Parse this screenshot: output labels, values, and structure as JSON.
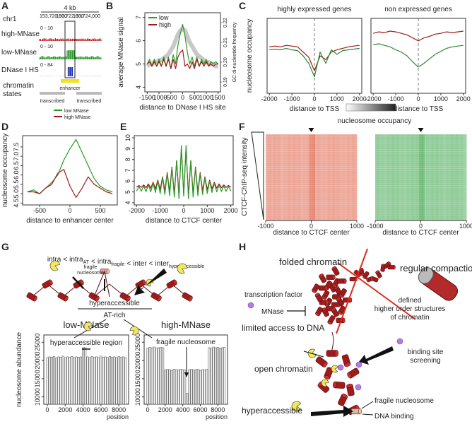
{
  "panel_labels": [
    "A",
    "B",
    "C",
    "D",
    "E",
    "F",
    "G",
    "H"
  ],
  "panel_a": {
    "chromosome": "chr1",
    "scale": "4 kb",
    "coordinates": [
      "153,720,000",
      "153,722,000",
      "153,724,000"
    ],
    "tracks": [
      {
        "name": "high-MNase",
        "range": "0 - 10",
        "color": "#cc2222"
      },
      {
        "name": "low-MNase",
        "range": "0 - 10",
        "color": "#2a9a2a"
      },
      {
        "name": "DNase I HS",
        "range": "0 - 84",
        "color": "#1a2ab0"
      }
    ],
    "states_label": [
      "chromatin",
      "states"
    ],
    "enhancer": "enhancer",
    "transcribed": [
      "transcribed",
      "transcribed"
    ]
  },
  "chart_data": [
    {
      "type": "line",
      "xlabel": "distance to DNase I HS site",
      "ylabel": "average MNase signal",
      "y2label": "GC di-nucleotide frequency",
      "legend": "topleft",
      "x": [
        -1500,
        -1400,
        -1300,
        -1200,
        -1100,
        -1000,
        -900,
        -800,
        -700,
        -600,
        -500,
        -400,
        -300,
        -200,
        -100,
        0,
        100,
        200,
        300,
        400,
        500,
        600,
        700,
        800,
        900,
        1000,
        1100,
        1200,
        1300,
        1400,
        1500
      ],
      "xlim": [
        -1600,
        1600
      ],
      "xticks": [
        -1500,
        -1000,
        -500,
        0,
        500,
        1000,
        1500
      ],
      "ylim": [
        3.8,
        7.2
      ],
      "yticks": [
        4,
        5,
        6,
        7
      ],
      "y2lim": [
        0.185,
        0.225
      ],
      "y2ticks": [
        0.19,
        {
          "value": 0.2,
          "label": "0.20"
        },
        0.21,
        0.22
      ],
      "series": [
        {
          "color": "#b0b0b0",
          "axis": "y2",
          "values": [
            0.198,
            0.199,
            0.199,
            0.2,
            0.2,
            0.201,
            0.201,
            0.202,
            0.203,
            0.204,
            0.206,
            0.208,
            0.211,
            0.214,
            0.216,
            0.217,
            0.216,
            0.213,
            0.21,
            0.208,
            0.206,
            0.204,
            0.203,
            0.202,
            0.201,
            0.2,
            0.2,
            0.199,
            0.199,
            0.198,
            0.198
          ]
        },
        {
          "name": "low",
          "color": "#2a9a2a",
          "values": [
            5.0,
            5.2,
            4.9,
            5.2,
            4.9,
            5.2,
            4.9,
            5.3,
            4.9,
            5.3,
            4.8,
            5.4,
            5.0,
            5.8,
            6.3,
            6.7,
            6.2,
            5.5,
            5.0,
            5.3,
            4.9,
            5.3,
            4.9,
            5.2,
            5.0,
            5.2,
            4.9,
            5.1,
            5.0,
            5.1,
            5.0
          ]
        },
        {
          "name": "high",
          "color": "#a01818",
          "values": [
            5.0,
            5.1,
            4.9,
            5.1,
            4.9,
            5.1,
            4.9,
            5.2,
            4.9,
            5.2,
            4.8,
            5.2,
            4.8,
            5.3,
            5.5,
            5.6,
            4.9,
            5.0,
            4.8,
            5.1,
            4.8,
            5.2,
            4.9,
            5.1,
            4.9,
            5.1,
            4.9,
            5.0,
            4.9,
            5.0,
            5.0
          ]
        }
      ]
    },
    {
      "type": "line",
      "title": "highly expressed genes",
      "xlabel": "distance to TSS",
      "ylabel": "nucleosome occupancy",
      "x": [
        -2000,
        -1750,
        -1500,
        -1250,
        -1000,
        -750,
        -500,
        -250,
        0,
        250,
        500,
        750,
        1000,
        1250,
        1500,
        1750,
        2000
      ],
      "xlim": [
        -2100,
        2100
      ],
      "xticks": [
        -2000,
        -1000,
        0,
        1000,
        2000
      ],
      "ylim": [
        0,
        1
      ],
      "series": [
        {
          "color": "#a01818",
          "values": [
            0.62,
            0.63,
            0.62,
            0.64,
            0.63,
            0.62,
            0.55,
            0.48,
            0.3,
            0.5,
            0.45,
            0.55,
            0.58,
            0.6,
            0.62,
            0.63,
            0.64
          ]
        },
        {
          "color": "#2a8a3a",
          "values": [
            0.58,
            0.59,
            0.58,
            0.6,
            0.58,
            0.57,
            0.5,
            0.4,
            0.22,
            0.55,
            0.4,
            0.58,
            0.52,
            0.57,
            0.58,
            0.59,
            0.6
          ]
        }
      ]
    },
    {
      "type": "line",
      "title": "non expressed genes",
      "xlabel": "distance to TSS",
      "x": [
        -2000,
        -1750,
        -1500,
        -1250,
        -1000,
        -750,
        -500,
        -250,
        0,
        250,
        500,
        750,
        1000,
        1250,
        1500,
        1750,
        2000
      ],
      "xlim": [
        -2100,
        2100
      ],
      "xticks": [
        -2000,
        -1000,
        0,
        1000,
        2000
      ],
      "ylim": [
        0,
        1
      ],
      "series": [
        {
          "color": "#a01818",
          "values": [
            0.8,
            0.82,
            0.81,
            0.83,
            0.82,
            0.8,
            0.78,
            0.74,
            0.7,
            0.74,
            0.76,
            0.79,
            0.8,
            0.82,
            0.81,
            0.82,
            0.83
          ]
        },
        {
          "color": "#2a8a3a",
          "values": [
            0.65,
            0.66,
            0.64,
            0.62,
            0.58,
            0.55,
            0.5,
            0.42,
            0.35,
            0.4,
            0.46,
            0.52,
            0.56,
            0.6,
            0.62,
            0.63,
            0.64
          ]
        }
      ]
    },
    {
      "type": "line",
      "xlabel": "distance to enhancer center",
      "ylabel": "nucleosome occupancy",
      "legend": "top-outside",
      "x": [
        -700,
        -600,
        -500,
        -400,
        -300,
        -200,
        -100,
        0,
        100,
        200,
        300,
        400,
        500,
        600,
        700
      ],
      "xlim": [
        -780,
        780
      ],
      "xticks": [
        -500,
        0,
        500
      ],
      "ylim": [
        4.4,
        8.1
      ],
      "yticks": [
        4.5,
        {
          "value": 5,
          "label": "5.0"
        },
        5.5,
        {
          "value": 6,
          "label": "6.0"
        },
        6.5,
        {
          "value": 7,
          "label": "7.0"
        },
        7.5
      ],
      "series": [
        {
          "name": "low MNase",
          "color": "#2a9a2a",
          "values": [
            5.1,
            5.2,
            5.0,
            5.3,
            5.6,
            6.0,
            6.8,
            7.4,
            7.9,
            7.2,
            6.5,
            5.8,
            5.4,
            5.2,
            5.1
          ]
        },
        {
          "name": "high MNase",
          "color": "#a01818",
          "values": [
            5.1,
            5.1,
            5.0,
            5.3,
            5.5,
            6.1,
            6.3,
            5.4,
            4.8,
            5.3,
            5.9,
            5.5,
            5.3,
            5.1,
            5.0
          ]
        }
      ]
    },
    {
      "type": "line",
      "xlabel": "distance to CTCF center",
      "x": [
        -2000,
        -1900,
        -1800,
        -1700,
        -1600,
        -1500,
        -1400,
        -1300,
        -1200,
        -1100,
        -1000,
        -900,
        -800,
        -700,
        -600,
        -500,
        -400,
        -300,
        -200,
        -100,
        0,
        100,
        200,
        300,
        400,
        500,
        600,
        700,
        800,
        900,
        1000,
        1100,
        1200,
        1300,
        1400,
        1500,
        1600,
        1700,
        1800,
        1900,
        2000
      ],
      "xlim": [
        -2100,
        2100
      ],
      "xticks": [
        -2000,
        -1000,
        0,
        1000,
        2000
      ],
      "ylim": [
        3.8,
        10.2
      ],
      "yticks": [
        4,
        5,
        6,
        7,
        8,
        9,
        10
      ],
      "series": [
        {
          "color": "#a01818",
          "values": [
            5.43,
            5.6,
            5.42,
            5.65,
            5.39,
            5.75,
            5.35,
            5.9,
            5.29,
            6.1,
            5.21,
            6.4,
            5.11,
            6.8,
            5.0,
            7.3,
            4.87,
            7.9,
            4.72,
            9.0,
            4.8,
            9.0,
            4.72,
            7.9,
            4.87,
            7.3,
            5.0,
            6.8,
            5.11,
            6.4,
            5.21,
            6.1,
            5.29,
            5.9,
            5.35,
            5.75,
            5.39,
            5.65,
            5.42,
            5.6,
            5.43
          ]
        },
        {
          "color": "#2a9a2a",
          "values": [
            5.08,
            5.5,
            5.07,
            5.55,
            5.04,
            5.65,
            5.0,
            5.8,
            4.94,
            6.0,
            4.86,
            6.3,
            4.76,
            6.7,
            4.65,
            7.2,
            4.52,
            7.9,
            4.37,
            9.3,
            4.6,
            9.3,
            4.37,
            7.9,
            4.52,
            7.2,
            4.65,
            6.7,
            4.76,
            6.3,
            4.86,
            6.0,
            4.94,
            5.8,
            5.0,
            5.65,
            5.04,
            5.55,
            5.07,
            5.5,
            5.08
          ]
        }
      ]
    },
    {
      "type": "heatmap",
      "xlabel": "distance to CTCF center",
      "xlim": [
        -1000,
        1000
      ],
      "xticks": [
        -1000,
        0,
        1000
      ],
      "color": "#e0684e"
    },
    {
      "type": "heatmap",
      "xlabel": "distance to CTCF center",
      "xlim": [
        -1000,
        1000
      ],
      "xticks": [
        -1000,
        0,
        1000
      ],
      "color": "#45a852"
    },
    {
      "type": "bar",
      "title": "low-MNase",
      "title_color": "#2a9a2a",
      "annotation": "hyperaccessible region",
      "ylabel": "nucleosome abundance",
      "xlabel": "position",
      "color": "#ffffff",
      "x": [
        0,
        250,
        500,
        750,
        1000,
        1250,
        1500,
        1750,
        2000,
        2250,
        2500,
        2750,
        3000,
        3250,
        3500,
        3750,
        4000,
        4250,
        4500,
        4750,
        5000,
        5250,
        5500,
        5750,
        6000,
        6250,
        6500,
        6750,
        7000,
        7250,
        7500,
        7750,
        8000,
        8250,
        8500,
        8750
      ],
      "values": [
        20800,
        21000,
        20900,
        21100,
        20700,
        21000,
        20900,
        21200,
        20800,
        21000,
        20900,
        21100,
        20800,
        21000,
        20900,
        21000,
        23500,
        25000,
        21000,
        20800,
        21100,
        20900,
        21000,
        20800,
        21200,
        20900,
        21000,
        20800,
        21100,
        20900,
        21000,
        20800,
        21100,
        20900,
        21000,
        20800
      ],
      "xlim": [
        -400,
        9100
      ],
      "xticks": [
        0,
        2000,
        4000,
        6000,
        8000
      ],
      "ylim": [
        8000,
        27000
      ],
      "yticks": [
        10000,
        15000,
        20000,
        25000
      ]
    },
    {
      "type": "bar",
      "title": "high-MNase",
      "title_color": "#d02020",
      "annotation": "fragile nucleosome",
      "xlabel": "position",
      "color": "#ffffff",
      "x": [
        0,
        250,
        500,
        750,
        1000,
        1250,
        1500,
        1750,
        2000,
        2250,
        2500,
        2750,
        3000,
        3250,
        3500,
        3750,
        4000,
        4250,
        4500,
        4750,
        5000,
        5250,
        5500,
        5750,
        6000,
        6250,
        6500,
        6750,
        7000,
        7250,
        7500,
        7750,
        8000,
        8250,
        8500,
        8750
      ],
      "values": [
        23400,
        23600,
        23500,
        23700,
        23400,
        23500,
        23600,
        23500,
        17400,
        17600,
        17500,
        17300,
        17600,
        17500,
        17400,
        17600,
        17500,
        17400,
        11000,
        17500,
        17600,
        17400,
        17500,
        17600,
        17300,
        17500,
        17400,
        17600,
        23500,
        23400,
        23700,
        23500,
        23600,
        23400,
        23500,
        23600
      ],
      "xlim": [
        -400,
        9100
      ],
      "xticks": [
        0,
        2000,
        4000,
        6000,
        8000
      ],
      "ylim": [
        8000,
        27000
      ],
      "yticks": [
        10000,
        15000,
        20000,
        25000
      ]
    }
  ],
  "panel_f": {
    "title": "nucleosome occupancy",
    "ylabel": "CTCF-ChIP-seq intensity"
  },
  "panel_g": {
    "relation": "<",
    "terms": [
      {
        "base": "intra"
      },
      {
        "base": "intra",
        "sub": "AT"
      },
      {
        "base": "intra",
        "sub": "fragile"
      },
      {
        "base": "inter"
      },
      {
        "base": "inter",
        "sub": "hyperaccessible"
      }
    ],
    "fragile_label": [
      "fragile",
      "nucleosome"
    ],
    "hyperaccessible": "hyperaccessible",
    "at_rich": "AT-rich"
  },
  "panel_h": {
    "folded": "folded chromatin",
    "regular": "regular compaction",
    "tf": "transcription factor",
    "mnase": "MNase",
    "limited": "limited access to DNA",
    "defined": [
      "defined",
      "higher order structures",
      "of chromatin"
    ],
    "screening": [
      "binding site",
      "screening"
    ],
    "open": "open chromatin",
    "hyperaccessible": "hyperaccessible",
    "fragile": "fragile nucleosome",
    "binding": "DNA binding"
  }
}
